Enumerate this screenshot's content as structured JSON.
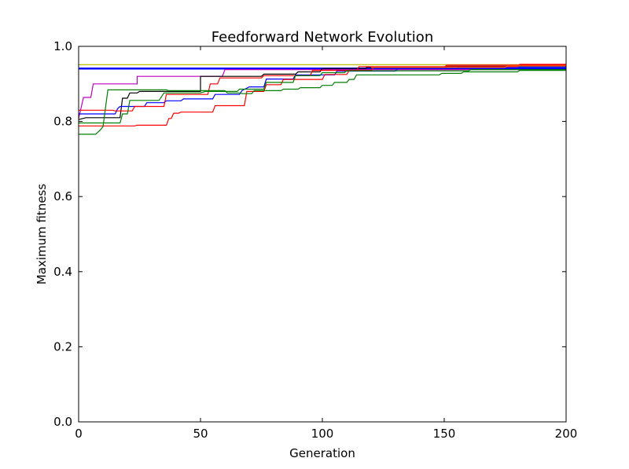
{
  "chart_data": {
    "type": "line",
    "title": "Feedforward Network Evolution",
    "xlabel": "Generation",
    "ylabel": "Maximum fitness",
    "xlim": [
      0,
      200
    ],
    "ylim": [
      0,
      1.0
    ],
    "xticks": [
      "0",
      "50",
      "100",
      "150",
      "200"
    ],
    "yticks": [
      "0.0",
      "0.2",
      "0.4",
      "0.6",
      "0.8",
      "1.0"
    ],
    "grid": false,
    "legend": "none",
    "series": [
      {
        "color": "#bfbf00",
        "points": [
          [
            0,
            0.951
          ],
          [
            200,
            0.951
          ]
        ]
      },
      {
        "color": "#0000ff",
        "width": 2.5,
        "points": [
          [
            0,
            0.941
          ],
          [
            200,
            0.941
          ]
        ]
      },
      {
        "color": "#bf00bf",
        "points": [
          [
            0,
            0.808
          ],
          [
            2,
            0.864
          ],
          [
            5,
            0.864
          ],
          [
            6,
            0.9
          ],
          [
            24,
            0.9
          ],
          [
            24,
            0.92
          ],
          [
            59,
            0.92
          ],
          [
            60,
            0.938
          ],
          [
            200,
            0.938
          ]
        ]
      },
      {
        "color": "#000000",
        "points": [
          [
            0,
            0.805
          ],
          [
            3,
            0.81
          ],
          [
            17,
            0.81
          ],
          [
            18,
            0.862
          ],
          [
            20,
            0.862
          ],
          [
            21,
            0.876
          ],
          [
            24,
            0.876
          ],
          [
            25,
            0.88
          ],
          [
            50,
            0.88
          ],
          [
            50,
            0.92
          ],
          [
            75,
            0.92
          ],
          [
            76,
            0.926
          ],
          [
            89,
            0.926
          ],
          [
            90,
            0.932
          ],
          [
            99,
            0.932
          ],
          [
            100,
            0.941
          ],
          [
            118,
            0.941
          ],
          [
            118,
            0.944
          ],
          [
            150,
            0.944
          ],
          [
            151,
            0.947
          ],
          [
            200,
            0.947
          ]
        ]
      },
      {
        "color": "#0000ff",
        "width": 1.2,
        "points": [
          [
            0,
            0.82
          ],
          [
            15,
            0.82
          ],
          [
            16,
            0.834
          ],
          [
            17,
            0.84
          ],
          [
            27,
            0.84
          ],
          [
            28,
            0.85
          ],
          [
            35,
            0.85
          ],
          [
            36,
            0.855
          ],
          [
            42,
            0.855
          ],
          [
            43,
            0.86
          ],
          [
            55,
            0.86
          ],
          [
            56,
            0.872
          ],
          [
            66,
            0.872
          ],
          [
            67,
            0.882
          ],
          [
            70,
            0.892
          ],
          [
            76,
            0.892
          ],
          [
            77,
            0.913
          ],
          [
            88,
            0.913
          ],
          [
            89,
            0.924
          ],
          [
            105,
            0.924
          ],
          [
            106,
            0.934
          ],
          [
            130,
            0.934
          ],
          [
            131,
            0.942
          ],
          [
            155,
            0.942
          ],
          [
            156,
            0.945
          ],
          [
            200,
            0.945
          ]
        ]
      },
      {
        "color": "#ff0000",
        "points": [
          [
            0,
            0.83
          ],
          [
            14,
            0.83
          ],
          [
            15,
            0.828
          ],
          [
            22,
            0.828
          ],
          [
            23,
            0.84
          ],
          [
            35,
            0.84
          ],
          [
            36,
            0.872
          ],
          [
            53,
            0.872
          ],
          [
            54,
            0.9
          ],
          [
            57,
            0.9
          ],
          [
            58,
            0.916
          ],
          [
            75,
            0.916
          ],
          [
            76,
            0.922
          ],
          [
            95,
            0.922
          ],
          [
            96,
            0.936
          ],
          [
            120,
            0.936
          ],
          [
            121,
            0.944
          ],
          [
            150,
            0.944
          ],
          [
            151,
            0.95
          ],
          [
            200,
            0.95
          ]
        ]
      },
      {
        "color": "#ff0000",
        "points": [
          [
            0,
            0.788
          ],
          [
            23,
            0.788
          ],
          [
            24,
            0.79
          ],
          [
            36,
            0.79
          ],
          [
            37,
            0.808
          ],
          [
            38,
            0.808
          ],
          [
            39,
            0.822
          ],
          [
            41,
            0.822
          ],
          [
            42,
            0.825
          ],
          [
            55,
            0.825
          ],
          [
            56,
            0.842
          ],
          [
            68,
            0.842
          ],
          [
            69,
            0.88
          ],
          [
            76,
            0.88
          ],
          [
            77,
            0.898
          ],
          [
            83,
            0.898
          ],
          [
            84,
            0.912
          ],
          [
            100,
            0.912
          ],
          [
            101,
            0.925
          ],
          [
            110,
            0.925
          ],
          [
            111,
            0.936
          ],
          [
            114,
            0.936
          ],
          [
            115,
            0.946
          ],
          [
            180,
            0.946
          ],
          [
            181,
            0.952
          ],
          [
            200,
            0.952
          ]
        ]
      },
      {
        "color": "#007f00",
        "points": [
          [
            0,
            0.766
          ],
          [
            7,
            0.766
          ],
          [
            9,
            0.778
          ],
          [
            10,
            0.786
          ],
          [
            12,
            0.884
          ],
          [
            36,
            0.884
          ],
          [
            37,
            0.882
          ],
          [
            60,
            0.882
          ],
          [
            61,
            0.876
          ],
          [
            66,
            0.876
          ],
          [
            67,
            0.874
          ],
          [
            71,
            0.874
          ],
          [
            72,
            0.882
          ],
          [
            83,
            0.882
          ],
          [
            84,
            0.886
          ],
          [
            90,
            0.886
          ],
          [
            91,
            0.89
          ],
          [
            99,
            0.89
          ],
          [
            100,
            0.896
          ],
          [
            104,
            0.896
          ],
          [
            105,
            0.904
          ],
          [
            110,
            0.904
          ],
          [
            111,
            0.912
          ],
          [
            113,
            0.912
          ],
          [
            114,
            0.924
          ],
          [
            148,
            0.924
          ],
          [
            149,
            0.928
          ],
          [
            157,
            0.928
          ],
          [
            158,
            0.932
          ],
          [
            180,
            0.932
          ],
          [
            181,
            0.936
          ],
          [
            200,
            0.936
          ]
        ]
      },
      {
        "color": "#007f00",
        "points": [
          [
            0,
            0.796
          ],
          [
            17,
            0.796
          ],
          [
            18,
            0.82
          ],
          [
            20,
            0.82
          ],
          [
            21,
            0.856
          ],
          [
            33,
            0.856
          ],
          [
            35,
            0.876
          ],
          [
            50,
            0.876
          ],
          [
            52,
            0.88
          ],
          [
            65,
            0.88
          ],
          [
            66,
            0.886
          ],
          [
            76,
            0.886
          ],
          [
            77,
            0.904
          ],
          [
            88,
            0.904
          ],
          [
            89,
            0.922
          ],
          [
            99,
            0.922
          ],
          [
            100,
            0.93
          ],
          [
            109,
            0.93
          ],
          [
            110,
            0.935
          ],
          [
            160,
            0.935
          ],
          [
            161,
            0.938
          ],
          [
            200,
            0.938
          ]
        ]
      },
      {
        "color": "#ff6600",
        "points": [
          [
            120,
            0.944
          ],
          [
            175,
            0.944
          ],
          [
            176,
            0.948
          ],
          [
            200,
            0.948
          ]
        ]
      }
    ]
  }
}
